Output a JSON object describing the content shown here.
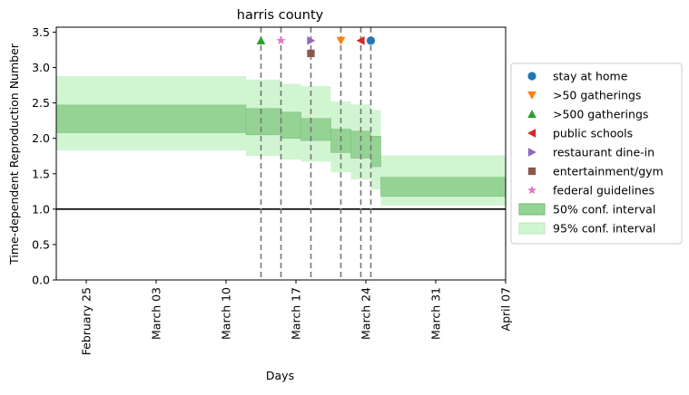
{
  "chart_data": {
    "type": "area",
    "title": "harris county",
    "xlabel": "Days",
    "ylabel": "Time-dependent Reproduction Number",
    "x_axis": {
      "type": "date",
      "range": [
        "2020-02-22",
        "2020-04-07"
      ],
      "tick_labels": [
        "February 25",
        "March 03",
        "March 10",
        "March 17",
        "March 24",
        "March 31",
        "April 07"
      ],
      "tick_dates": [
        "2020-02-25",
        "2020-03-03",
        "2020-03-10",
        "2020-03-17",
        "2020-03-24",
        "2020-03-31",
        "2020-04-07"
      ]
    },
    "y_axis": {
      "range": [
        0,
        3.57
      ],
      "tick_labels": [
        "0.0",
        "0.5",
        "1.0",
        "1.5",
        "2.0",
        "2.5",
        "3.0",
        "3.5"
      ],
      "ticks": [
        0,
        0.5,
        1.0,
        1.5,
        2.0,
        2.5,
        3.0,
        3.5
      ]
    },
    "grid": false,
    "legend_placement": "outside-right",
    "reference_line": {
      "y": 1.0,
      "color": "#000000"
    },
    "series": [
      {
        "name": "95% conf. interval",
        "kind": "band",
        "color": "#d1f5d1",
        "segments": [
          {
            "start": "2020-02-22",
            "end": "2020-03-12",
            "low": 1.83,
            "high": 2.88
          },
          {
            "start": "2020-03-12",
            "end": "2020-03-15.5",
            "low": 1.75,
            "high": 2.83
          },
          {
            "start": "2020-03-15.5",
            "end": "2020-03-17.5",
            "low": 1.7,
            "high": 2.77
          },
          {
            "start": "2020-03-17.5",
            "end": "2020-03-20.5",
            "low": 1.67,
            "high": 2.74
          },
          {
            "start": "2020-03-20.5",
            "end": "2020-03-22.5",
            "low": 1.52,
            "high": 2.52
          },
          {
            "start": "2020-03-22.5",
            "end": "2020-03-24.5",
            "low": 1.42,
            "high": 2.48
          },
          {
            "start": "2020-03-24.5",
            "end": "2020-03-25.5",
            "low": 1.28,
            "high": 2.4
          },
          {
            "start": "2020-03-25.5",
            "end": "2020-04-07",
            "low": 1.05,
            "high": 1.76
          }
        ]
      },
      {
        "name": "50% conf. interval",
        "kind": "band",
        "color": "#95d395",
        "segments": [
          {
            "start": "2020-02-22",
            "end": "2020-03-12",
            "low": 2.08,
            "high": 2.47
          },
          {
            "start": "2020-03-12",
            "end": "2020-03-15.5",
            "low": 2.05,
            "high": 2.42
          },
          {
            "start": "2020-03-15.5",
            "end": "2020-03-17.5",
            "low": 2.0,
            "high": 2.37
          },
          {
            "start": "2020-03-17.5",
            "end": "2020-03-20.5",
            "low": 1.97,
            "high": 2.28
          },
          {
            "start": "2020-03-20.5",
            "end": "2020-03-22.5",
            "low": 1.8,
            "high": 2.13
          },
          {
            "start": "2020-03-22.5",
            "end": "2020-03-24.5",
            "low": 1.72,
            "high": 2.1
          },
          {
            "start": "2020-03-24.5",
            "end": "2020-03-25.5",
            "low": 1.6,
            "high": 2.03
          },
          {
            "start": "2020-03-25.5",
            "end": "2020-04-07",
            "low": 1.18,
            "high": 1.45
          }
        ]
      }
    ],
    "interventions": [
      {
        "name": "stay at home",
        "date": "2020-03-24.5",
        "y": 3.38,
        "marker": "circle",
        "color": "#1f77b4"
      },
      {
        "name": ">50 gatherings",
        "date": "2020-03-21.5",
        "y": 3.38,
        "marker": "triangle-down",
        "color": "#ff7f0e"
      },
      {
        "name": ">500 gatherings",
        "date": "2020-03-13.5",
        "y": 3.38,
        "marker": "triangle-up",
        "color": "#2ca02c"
      },
      {
        "name": "public schools",
        "date": "2020-03-23.5",
        "y": 3.38,
        "marker": "triangle-left",
        "color": "#d62728"
      },
      {
        "name": "restaurant dine-in",
        "date": "2020-03-18.5",
        "y": 3.38,
        "marker": "triangle-right",
        "color": "#9467bd"
      },
      {
        "name": "entertainment/gym",
        "date": "2020-03-18.5",
        "y": 3.2,
        "marker": "square",
        "color": "#8c564b"
      },
      {
        "name": "federal guidelines",
        "date": "2020-03-15.5",
        "y": 3.38,
        "marker": "star",
        "color": "#e377c2"
      }
    ],
    "legend": [
      {
        "label": "stay at home",
        "marker": "circle",
        "color": "#1f77b4"
      },
      {
        "label": ">50 gatherings",
        "marker": "triangle-down",
        "color": "#ff7f0e"
      },
      {
        "label": ">500 gatherings",
        "marker": "triangle-up",
        "color": "#2ca02c"
      },
      {
        "label": "public schools",
        "marker": "triangle-left",
        "color": "#d62728"
      },
      {
        "label": "restaurant dine-in",
        "marker": "triangle-right",
        "color": "#9467bd"
      },
      {
        "label": "entertainment/gym",
        "marker": "square",
        "color": "#8c564b"
      },
      {
        "label": "federal guidelines",
        "marker": "star",
        "color": "#e377c2"
      },
      {
        "label": "50% conf. interval",
        "marker": "patch",
        "color": "#95d395"
      },
      {
        "label": "95% conf. interval",
        "marker": "patch",
        "color": "#d1f5d1"
      }
    ]
  }
}
